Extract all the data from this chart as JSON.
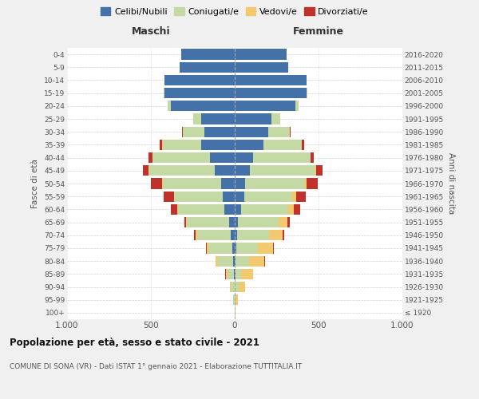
{
  "age_groups": [
    "100+",
    "95-99",
    "90-94",
    "85-89",
    "80-84",
    "75-79",
    "70-74",
    "65-69",
    "60-64",
    "55-59",
    "50-54",
    "45-49",
    "40-44",
    "35-39",
    "30-34",
    "25-29",
    "20-24",
    "15-19",
    "10-14",
    "5-9",
    "0-4"
  ],
  "birth_years": [
    "≤ 1920",
    "1921-1925",
    "1926-1930",
    "1931-1935",
    "1936-1940",
    "1941-1945",
    "1946-1950",
    "1951-1955",
    "1956-1960",
    "1961-1965",
    "1966-1970",
    "1971-1975",
    "1976-1980",
    "1981-1985",
    "1986-1990",
    "1991-1995",
    "1996-2000",
    "2001-2005",
    "2006-2010",
    "2011-2015",
    "2016-2020"
  ],
  "males": {
    "celibi": [
      0,
      0,
      2,
      4,
      8,
      15,
      25,
      35,
      60,
      70,
      80,
      120,
      150,
      200,
      180,
      200,
      380,
      420,
      420,
      330,
      320
    ],
    "coniugati": [
      2,
      8,
      20,
      40,
      90,
      140,
      200,
      250,
      280,
      290,
      350,
      390,
      340,
      230,
      130,
      50,
      20,
      5,
      0,
      0,
      0
    ],
    "vedovi": [
      0,
      2,
      5,
      10,
      15,
      10,
      10,
      5,
      5,
      3,
      3,
      2,
      2,
      1,
      0,
      0,
      2,
      0,
      0,
      0,
      0
    ],
    "divorziati": [
      0,
      0,
      0,
      1,
      2,
      5,
      10,
      10,
      35,
      60,
      65,
      35,
      20,
      15,
      5,
      0,
      0,
      0,
      0,
      0,
      0
    ]
  },
  "females": {
    "nubili": [
      0,
      0,
      2,
      3,
      5,
      10,
      15,
      20,
      40,
      55,
      60,
      90,
      110,
      170,
      200,
      220,
      360,
      430,
      430,
      320,
      310
    ],
    "coniugate": [
      2,
      5,
      20,
      35,
      80,
      130,
      190,
      240,
      280,
      290,
      360,
      390,
      340,
      230,
      130,
      50,
      20,
      5,
      0,
      0,
      0
    ],
    "vedove": [
      3,
      15,
      40,
      70,
      90,
      90,
      80,
      55,
      30,
      20,
      10,
      5,
      2,
      1,
      0,
      0,
      0,
      0,
      0,
      0,
      0
    ],
    "divorziate": [
      0,
      0,
      1,
      2,
      5,
      5,
      10,
      15,
      40,
      60,
      65,
      40,
      20,
      15,
      5,
      0,
      0,
      0,
      0,
      0,
      0
    ]
  },
  "colors": {
    "celibi_nubili": "#4472a8",
    "coniugati": "#c5d9a4",
    "vedovi": "#f2c96e",
    "divorziati": "#c0312b"
  },
  "xlim": 1000,
  "title": "Popolazione per età, sesso e stato civile - 2021",
  "subtitle": "COMUNE DI SONA (VR) - Dati ISTAT 1° gennaio 2021 - Elaborazione TUTTITALIA.IT",
  "ylabel_left": "Fasce di età",
  "ylabel_right": "Anni di nascita",
  "xlabel_left": "Maschi",
  "xlabel_right": "Femmine",
  "legend_labels": [
    "Celibi/Nubili",
    "Coniugati/e",
    "Vedovi/e",
    "Divorziati/e"
  ],
  "bg_color": "#f0f0f0",
  "plot_bg_color": "#ffffff"
}
